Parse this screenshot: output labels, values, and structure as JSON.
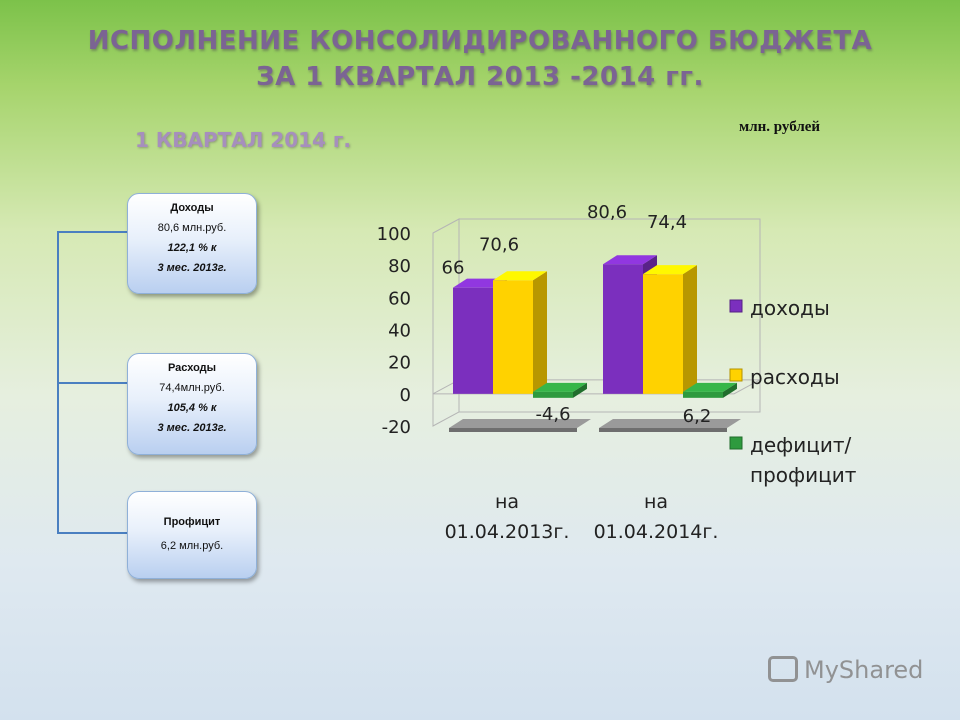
{
  "header": {
    "title_line1": "ИСПОЛНЕНИЕ КОНСОЛИДИРОВАННОГО БЮДЖЕТА",
    "title_line2": "ЗА 1 КВАРТАЛ 2013 -2014 гг.",
    "subtitle": "1 КВАРТАЛ 2014 г.",
    "units": "млн. рублей"
  },
  "boxes": {
    "income": {
      "title": "Доходы",
      "amount": "80,6 млн.руб.",
      "percent": "122,1 % к",
      "period": "3 мес. 2013г."
    },
    "expense": {
      "title": "Расходы",
      "amount": "74,4млн.руб.",
      "percent": "105,4 % к",
      "period": "3 мес. 2013г."
    },
    "surplus": {
      "title": "Профицит",
      "amount": "6,2 млн.руб."
    }
  },
  "chart_data": {
    "type": "bar",
    "categories": [
      "на 01.04.2013г.",
      "на 01.04.2014г."
    ],
    "category_lines": [
      [
        "на",
        "01.04.2013г."
      ],
      [
        "на",
        "01.04.2014г."
      ]
    ],
    "series": [
      {
        "name": "доходы",
        "values": [
          66,
          80.6
        ],
        "labels": [
          "66",
          "80,6"
        ],
        "color": "#7b2fbe"
      },
      {
        "name": "расходы",
        "values": [
          70.6,
          74.4
        ],
        "labels": [
          "70,6",
          "74,4"
        ],
        "color": "#ffd200"
      },
      {
        "name": "дефицит/ профицит",
        "name_lines": [
          "дефицит/",
          "профицит"
        ],
        "values": [
          -4.6,
          6.2
        ],
        "labels": [
          "-4,6",
          "6,2"
        ],
        "color": "#2e9a3e"
      }
    ],
    "ylim": [
      -20,
      100
    ],
    "yticks": [
      -20,
      0,
      20,
      40,
      60,
      80,
      100
    ],
    "legend_position": "right",
    "gridlines": false,
    "three_d": true
  },
  "watermark": {
    "text": "MyShared"
  }
}
